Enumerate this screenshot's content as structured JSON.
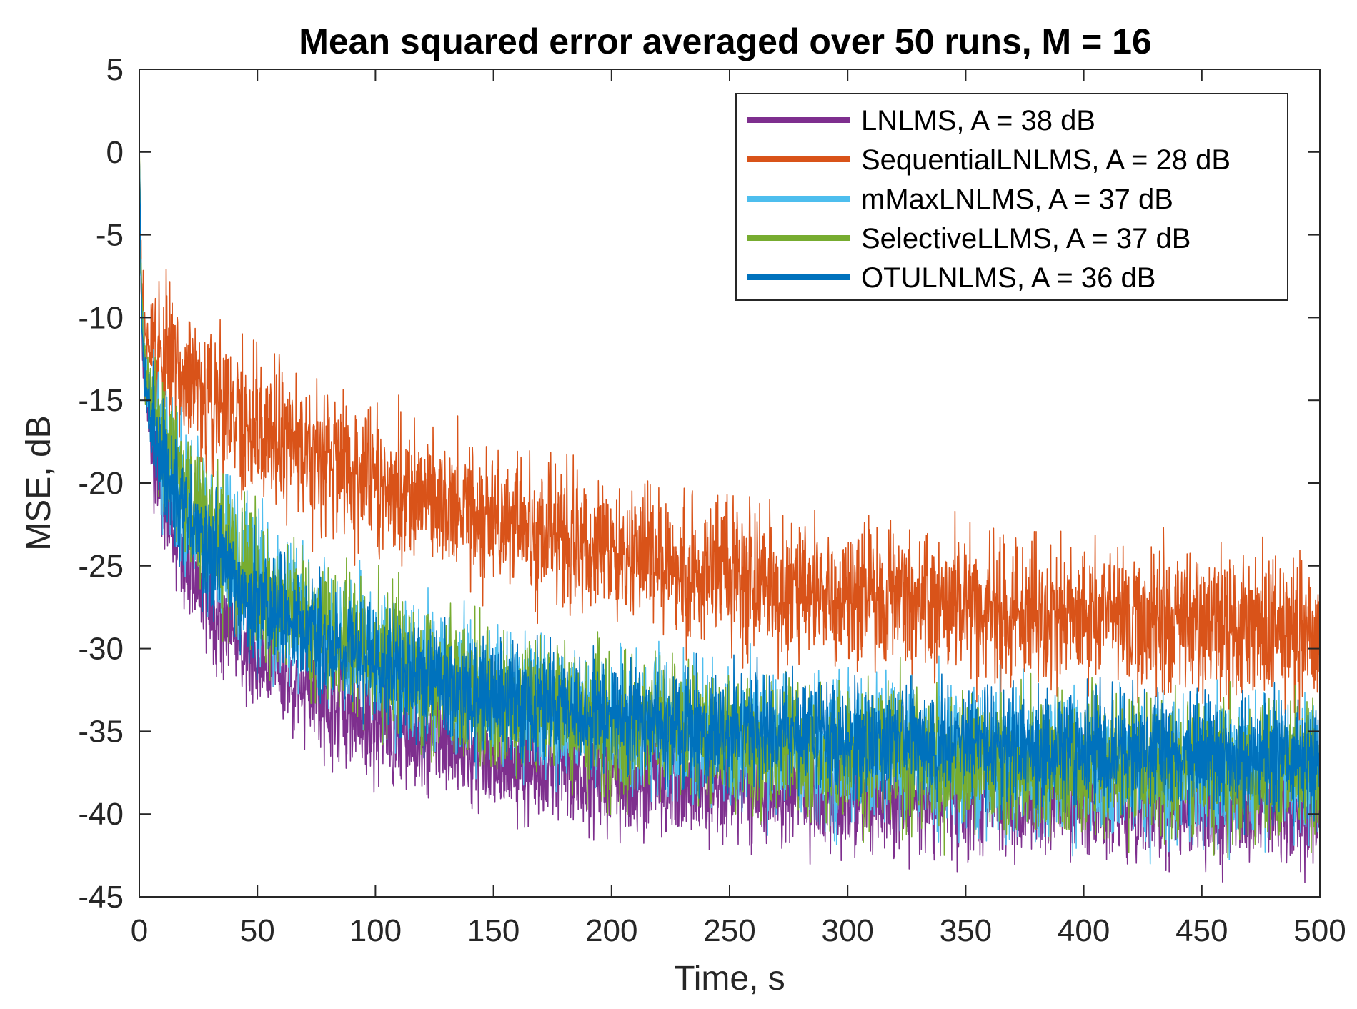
{
  "chart_data": {
    "type": "line",
    "title": "Mean squared error averaged over 50 runs, M = 16",
    "xlabel": "Time, s",
    "ylabel": "MSE, dB",
    "xlim": [
      0,
      500
    ],
    "ylim": [
      -45,
      5
    ],
    "xticks": [
      0,
      50,
      100,
      150,
      200,
      250,
      300,
      350,
      400,
      450,
      500
    ],
    "yticks": [
      5,
      0,
      -5,
      -10,
      -15,
      -20,
      -25,
      -30,
      -35,
      -40,
      -45
    ],
    "grid": false,
    "legend_position": "top-right",
    "series": [
      {
        "name": "LNLMS, A = 38 dB",
        "color": "#7E2F8E",
        "x": [
          0,
          1,
          2,
          5,
          10,
          20,
          30,
          50,
          75,
          100,
          150,
          200,
          250,
          300,
          350,
          400,
          450,
          500
        ],
        "mean": [
          0,
          -10,
          -14,
          -17,
          -21,
          -25,
          -27.5,
          -30.5,
          -33,
          -34.8,
          -36.8,
          -37.8,
          -38.5,
          -38.9,
          -39.2,
          -39.4,
          -39.6,
          -39.8
        ],
        "spread": 3.2
      },
      {
        "name": "SequentialLNLMS, A = 28 dB",
        "color": "#D95319",
        "x": [
          0,
          1,
          2,
          5,
          10,
          20,
          30,
          50,
          75,
          100,
          150,
          200,
          250,
          300,
          350,
          400,
          450,
          500
        ],
        "mean": [
          0,
          -8,
          -10.5,
          -11.5,
          -12.5,
          -14,
          -15,
          -16.5,
          -18.3,
          -20,
          -22.3,
          -24.2,
          -25.6,
          -26.7,
          -27.4,
          -28,
          -28.4,
          -28.8
        ],
        "spread": 4.2
      },
      {
        "name": "mMaxLNLMS, A = 37 dB",
        "color": "#4DBEEE",
        "x": [
          0,
          1,
          2,
          5,
          10,
          20,
          30,
          50,
          75,
          100,
          150,
          200,
          250,
          300,
          350,
          400,
          450,
          500
        ],
        "mean": [
          0,
          -9,
          -12,
          -15,
          -18,
          -21,
          -23,
          -26,
          -28.5,
          -30.5,
          -33,
          -34.5,
          -35.5,
          -36.2,
          -36.7,
          -37,
          -37.2,
          -37.4
        ],
        "spread": 4.2
      },
      {
        "name": "SelectiveLLMS, A = 37 dB",
        "color": "#77AC30",
        "x": [
          0,
          1,
          2,
          5,
          10,
          20,
          30,
          50,
          75,
          100,
          150,
          200,
          250,
          300,
          350,
          400,
          450,
          500
        ],
        "mean": [
          0.5,
          -9,
          -12,
          -15,
          -18,
          -21,
          -23,
          -26.2,
          -28.7,
          -30.6,
          -33.1,
          -34.6,
          -35.6,
          -36.3,
          -36.8,
          -37.1,
          -37.3,
          -37.5
        ],
        "spread": 4.2
      },
      {
        "name": "OTULNLMS, A = 36 dB",
        "color": "#0072BD",
        "x": [
          0,
          1,
          2,
          5,
          10,
          20,
          30,
          50,
          75,
          100,
          150,
          200,
          250,
          300,
          350,
          400,
          450,
          500
        ],
        "mean": [
          0,
          -10,
          -13,
          -16,
          -19,
          -22,
          -24.3,
          -27,
          -29.5,
          -31,
          -33,
          -34.2,
          -35,
          -35.5,
          -35.9,
          -36.2,
          -36.4,
          -36.6
        ],
        "spread": 3.4
      }
    ]
  }
}
